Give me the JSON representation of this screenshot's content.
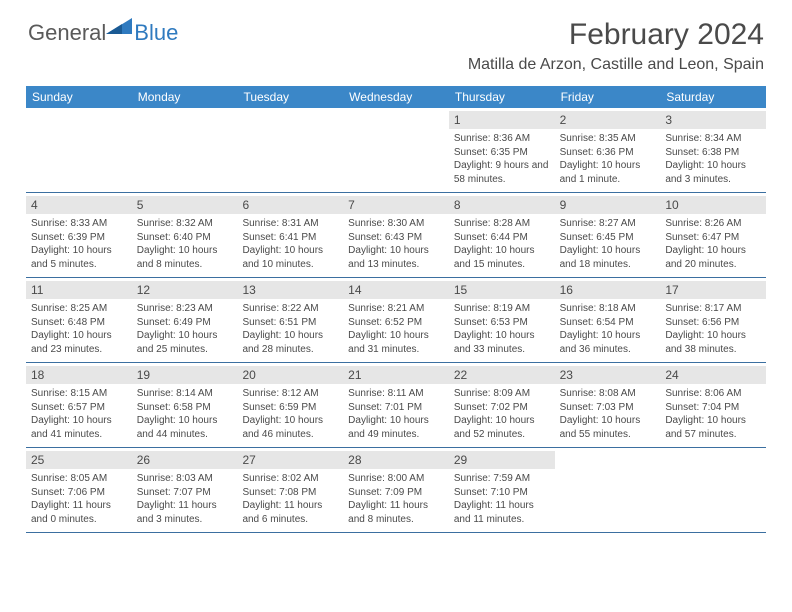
{
  "brand": {
    "general": "General",
    "blue": "Blue"
  },
  "title": "February 2024",
  "location": "Matilla de Arzon, Castille and Leon, Spain",
  "colors": {
    "header_bg": "#3b87c8",
    "row_rule": "#3b6fa0",
    "daynum_bg": "#e6e6e6",
    "text": "#4a4a4a",
    "brand_blue": "#2f7abf"
  },
  "days_of_week": [
    "Sunday",
    "Monday",
    "Tuesday",
    "Wednesday",
    "Thursday",
    "Friday",
    "Saturday"
  ],
  "weeks": [
    [
      null,
      null,
      null,
      null,
      {
        "n": "1",
        "sunrise": "8:36 AM",
        "sunset": "6:35 PM",
        "daylight": "9 hours and 58 minutes."
      },
      {
        "n": "2",
        "sunrise": "8:35 AM",
        "sunset": "6:36 PM",
        "daylight": "10 hours and 1 minute."
      },
      {
        "n": "3",
        "sunrise": "8:34 AM",
        "sunset": "6:38 PM",
        "daylight": "10 hours and 3 minutes."
      }
    ],
    [
      {
        "n": "4",
        "sunrise": "8:33 AM",
        "sunset": "6:39 PM",
        "daylight": "10 hours and 5 minutes."
      },
      {
        "n": "5",
        "sunrise": "8:32 AM",
        "sunset": "6:40 PM",
        "daylight": "10 hours and 8 minutes."
      },
      {
        "n": "6",
        "sunrise": "8:31 AM",
        "sunset": "6:41 PM",
        "daylight": "10 hours and 10 minutes."
      },
      {
        "n": "7",
        "sunrise": "8:30 AM",
        "sunset": "6:43 PM",
        "daylight": "10 hours and 13 minutes."
      },
      {
        "n": "8",
        "sunrise": "8:28 AM",
        "sunset": "6:44 PM",
        "daylight": "10 hours and 15 minutes."
      },
      {
        "n": "9",
        "sunrise": "8:27 AM",
        "sunset": "6:45 PM",
        "daylight": "10 hours and 18 minutes."
      },
      {
        "n": "10",
        "sunrise": "8:26 AM",
        "sunset": "6:47 PM",
        "daylight": "10 hours and 20 minutes."
      }
    ],
    [
      {
        "n": "11",
        "sunrise": "8:25 AM",
        "sunset": "6:48 PM",
        "daylight": "10 hours and 23 minutes."
      },
      {
        "n": "12",
        "sunrise": "8:23 AM",
        "sunset": "6:49 PM",
        "daylight": "10 hours and 25 minutes."
      },
      {
        "n": "13",
        "sunrise": "8:22 AM",
        "sunset": "6:51 PM",
        "daylight": "10 hours and 28 minutes."
      },
      {
        "n": "14",
        "sunrise": "8:21 AM",
        "sunset": "6:52 PM",
        "daylight": "10 hours and 31 minutes."
      },
      {
        "n": "15",
        "sunrise": "8:19 AM",
        "sunset": "6:53 PM",
        "daylight": "10 hours and 33 minutes."
      },
      {
        "n": "16",
        "sunrise": "8:18 AM",
        "sunset": "6:54 PM",
        "daylight": "10 hours and 36 minutes."
      },
      {
        "n": "17",
        "sunrise": "8:17 AM",
        "sunset": "6:56 PM",
        "daylight": "10 hours and 38 minutes."
      }
    ],
    [
      {
        "n": "18",
        "sunrise": "8:15 AM",
        "sunset": "6:57 PM",
        "daylight": "10 hours and 41 minutes."
      },
      {
        "n": "19",
        "sunrise": "8:14 AM",
        "sunset": "6:58 PM",
        "daylight": "10 hours and 44 minutes."
      },
      {
        "n": "20",
        "sunrise": "8:12 AM",
        "sunset": "6:59 PM",
        "daylight": "10 hours and 46 minutes."
      },
      {
        "n": "21",
        "sunrise": "8:11 AM",
        "sunset": "7:01 PM",
        "daylight": "10 hours and 49 minutes."
      },
      {
        "n": "22",
        "sunrise": "8:09 AM",
        "sunset": "7:02 PM",
        "daylight": "10 hours and 52 minutes."
      },
      {
        "n": "23",
        "sunrise": "8:08 AM",
        "sunset": "7:03 PM",
        "daylight": "10 hours and 55 minutes."
      },
      {
        "n": "24",
        "sunrise": "8:06 AM",
        "sunset": "7:04 PM",
        "daylight": "10 hours and 57 minutes."
      }
    ],
    [
      {
        "n": "25",
        "sunrise": "8:05 AM",
        "sunset": "7:06 PM",
        "daylight": "11 hours and 0 minutes."
      },
      {
        "n": "26",
        "sunrise": "8:03 AM",
        "sunset": "7:07 PM",
        "daylight": "11 hours and 3 minutes."
      },
      {
        "n": "27",
        "sunrise": "8:02 AM",
        "sunset": "7:08 PM",
        "daylight": "11 hours and 6 minutes."
      },
      {
        "n": "28",
        "sunrise": "8:00 AM",
        "sunset": "7:09 PM",
        "daylight": "11 hours and 8 minutes."
      },
      {
        "n": "29",
        "sunrise": "7:59 AM",
        "sunset": "7:10 PM",
        "daylight": "11 hours and 11 minutes."
      },
      null,
      null
    ]
  ],
  "labels": {
    "sunrise": "Sunrise: ",
    "sunset": "Sunset: ",
    "daylight": "Daylight: "
  }
}
